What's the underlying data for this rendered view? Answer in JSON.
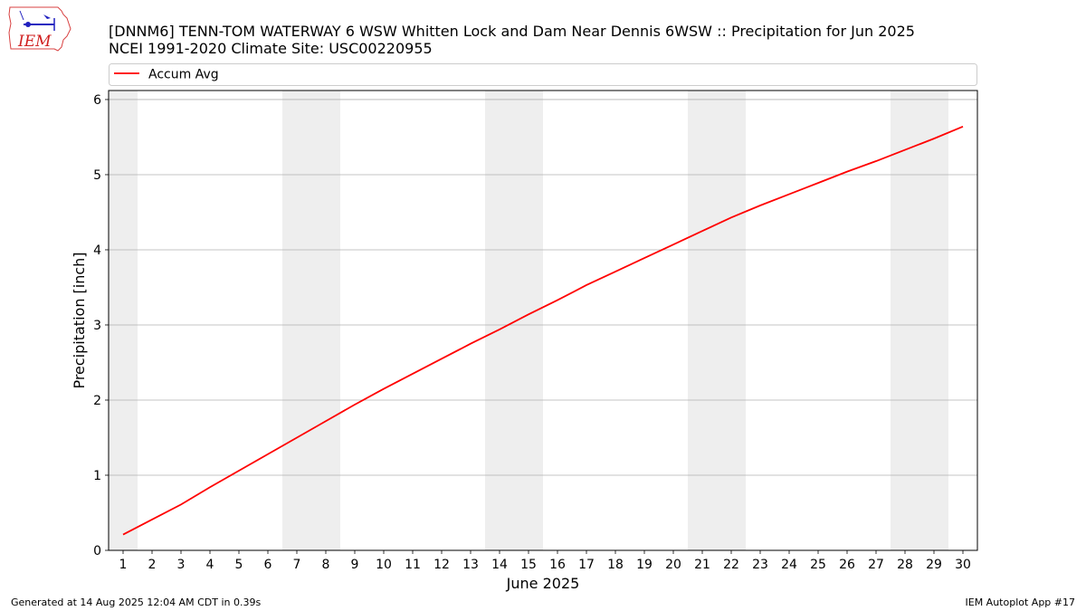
{
  "title": {
    "line1": "[DNNM6] TENN-TOM WATERWAY 6 WSW Whitten Lock and Dam Near Dennis 6WSW :: Precipitation for Jun 2025",
    "line2": "NCEI 1991-2020 Climate Site: USC00220955"
  },
  "logo": {
    "text": "IEM"
  },
  "footer": {
    "left": "Generated at 14 Aug 2025 12:04 AM CDT in 0.39s",
    "right": "IEM Autoplot App #17"
  },
  "colors": {
    "series": "#ff0000",
    "weekend": "#eeeeee",
    "grid": "#b0b0b0"
  },
  "chart_data": {
    "type": "line",
    "xlabel": "June 2025",
    "ylabel": "Precipitation [inch]",
    "xlim": [
      0.5,
      30.5
    ],
    "ylim": [
      0,
      6.12
    ],
    "yticks": [
      0,
      1,
      2,
      3,
      4,
      5,
      6
    ],
    "xticks": [
      1,
      2,
      3,
      4,
      5,
      6,
      7,
      8,
      9,
      10,
      11,
      12,
      13,
      14,
      15,
      16,
      17,
      18,
      19,
      20,
      21,
      22,
      23,
      24,
      25,
      26,
      27,
      28,
      29,
      30
    ],
    "grid": "horizontal",
    "legend": {
      "position": "top",
      "entries": [
        "Accum Avg"
      ]
    },
    "weekend_days": [
      1,
      7,
      8,
      14,
      15,
      21,
      22,
      28,
      29
    ],
    "series": [
      {
        "name": "Accum Avg",
        "x": [
          1,
          2,
          3,
          4,
          5,
          6,
          7,
          8,
          9,
          10,
          11,
          12,
          13,
          14,
          15,
          16,
          17,
          18,
          19,
          20,
          21,
          22,
          23,
          24,
          25,
          26,
          27,
          28,
          29,
          30
        ],
        "values": [
          0.21,
          0.41,
          0.61,
          0.84,
          1.06,
          1.28,
          1.5,
          1.72,
          1.94,
          2.15,
          2.35,
          2.55,
          2.75,
          2.94,
          3.14,
          3.33,
          3.53,
          3.71,
          3.89,
          4.07,
          4.25,
          4.43,
          4.59,
          4.74,
          4.89,
          5.04,
          5.18,
          5.33,
          5.48,
          5.64
        ]
      }
    ]
  }
}
